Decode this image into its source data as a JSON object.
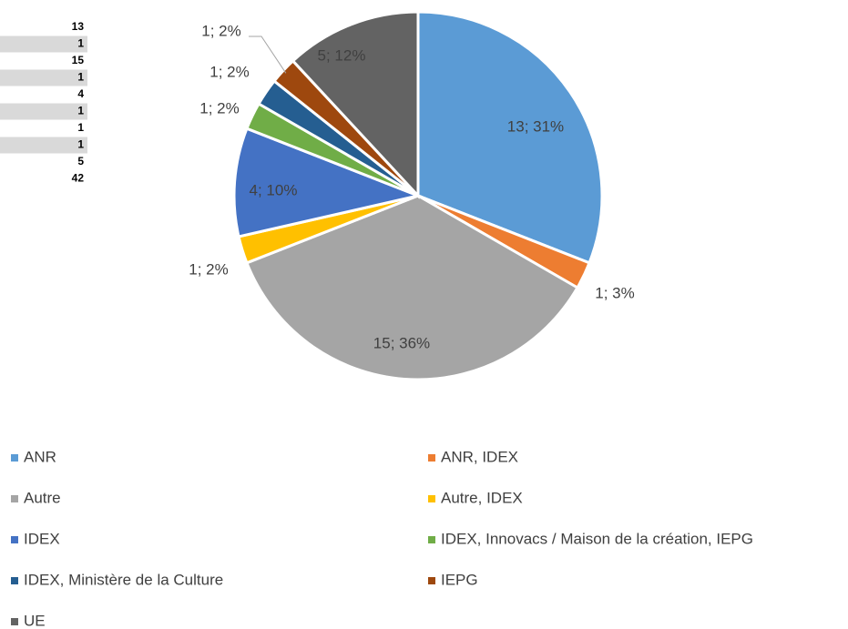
{
  "chart_data": {
    "type": "pie",
    "categories": [
      "ANR",
      "ANR, IDEX",
      "Autre",
      "Autre, IDEX",
      "IDEX",
      "IDEX, Innovacs / Maison de la création, IEPG",
      "IDEX, Ministère de la Culture",
      "IEPG",
      "UE"
    ],
    "values": [
      13,
      1,
      15,
      1,
      4,
      1,
      1,
      1,
      5
    ],
    "value_labels": [
      "13; 31%",
      "1; 3%",
      "15; 36%",
      "1; 2%",
      "4; 10%",
      "1; 2%",
      "1; 2%",
      "1; 2%",
      "5; 12%"
    ],
    "colors": [
      "#5b9bd5",
      "#ed7d31",
      "#a5a5a5",
      "#ffc000",
      "#4472c4",
      "#70ad47",
      "#255e91",
      "#9e480e",
      "#636363"
    ],
    "table_total": 42
  }
}
